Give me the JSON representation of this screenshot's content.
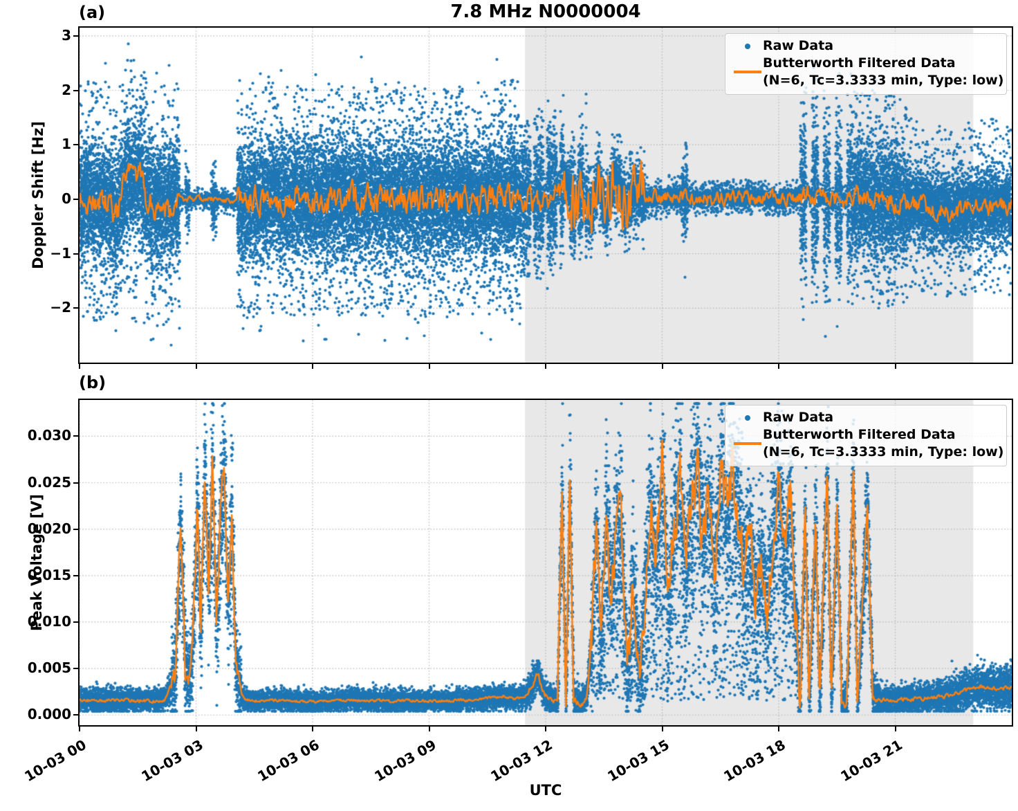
{
  "title": "7.8 MHz N0000004",
  "xlabel": "UTC",
  "panels": {
    "a": {
      "tag": "(a)",
      "ylabel": "Doppler Shift [Hz]"
    },
    "b": {
      "tag": "(b)",
      "ylabel": "Peak Voltage [V]"
    }
  },
  "legend": {
    "raw": "Raw Data",
    "filtered": "Butterworth Filtered Data",
    "filtered_params": "(N=6, Tc=3.3333 min, Type: low)"
  },
  "colors": {
    "raw": "#1f77b4",
    "filtered": "#ff7f0e",
    "shade": "#e8e8e8",
    "grid": "#b3b3b3",
    "spine": "#000000"
  },
  "chart_data": [
    {
      "id": "doppler_shift",
      "type": "scatter",
      "panel": "a",
      "ylabel": "Doppler Shift [Hz]",
      "x_unit": "hours after 10-03 00 UTC",
      "xlim_hours": [
        0,
        24
      ],
      "ylim": [
        -3.0,
        3.15
      ],
      "xticks_hours": [
        0,
        3,
        6,
        9,
        12,
        15,
        18,
        21
      ],
      "xtick_labels": [
        "10-03 00",
        "10-03 03",
        "10-03 06",
        "10-03 09",
        "10-03 12",
        "10-03 15",
        "10-03 18",
        "10-03 21"
      ],
      "yticks": [
        3,
        2,
        1,
        0,
        -1,
        -2
      ],
      "ytick_labels": [
        "3",
        "2",
        "1",
        "0",
        "−1",
        "−2"
      ],
      "grid": true,
      "legend_loc": "upper right",
      "shade_span_hours": [
        11.47,
        23.01
      ],
      "series_names": [
        "Raw Data",
        "Butterworth Filtered Data (N=6, Tc=3.3333 min, Type: low)"
      ],
      "filtered_trend_hz": [
        [
          0,
          0.0
        ],
        [
          0.5,
          -0.05
        ],
        [
          0.8,
          -0.12
        ],
        [
          0.95,
          -0.35
        ],
        [
          1.1,
          0.1
        ],
        [
          1.25,
          0.5
        ],
        [
          1.4,
          0.35
        ],
        [
          1.55,
          0.45
        ],
        [
          1.7,
          0.05
        ],
        [
          1.9,
          -0.15
        ],
        [
          2.2,
          -0.1
        ],
        [
          2.5,
          -0.02
        ],
        [
          3.0,
          0.0
        ],
        [
          3.6,
          0.0
        ],
        [
          4.2,
          -0.08
        ],
        [
          4.8,
          0.0
        ],
        [
          6.0,
          0.0
        ],
        [
          7.5,
          0.02
        ],
        [
          9.0,
          -0.02
        ],
        [
          10.5,
          0.0
        ],
        [
          11.4,
          0.05
        ],
        [
          12.0,
          0.0
        ],
        [
          12.55,
          0.3
        ],
        [
          12.75,
          -0.2
        ],
        [
          12.95,
          0.3
        ],
        [
          13.15,
          -0.35
        ],
        [
          13.35,
          0.4
        ],
        [
          13.55,
          -0.3
        ],
        [
          13.75,
          0.45
        ],
        [
          13.9,
          0.25
        ],
        [
          14.05,
          -0.2
        ],
        [
          14.3,
          0.2
        ],
        [
          14.55,
          0.0
        ],
        [
          15.2,
          0.05
        ],
        [
          16.0,
          0.0
        ],
        [
          17.0,
          0.05
        ],
        [
          18.0,
          0.0
        ],
        [
          18.8,
          0.08
        ],
        [
          19.4,
          -0.05
        ],
        [
          20.0,
          0.05
        ],
        [
          20.6,
          0.0
        ],
        [
          21.2,
          -0.05
        ],
        [
          21.9,
          -0.15
        ],
        [
          22.5,
          -0.25
        ],
        [
          23.0,
          -0.15
        ],
        [
          23.5,
          -0.12
        ],
        [
          24,
          -0.16
        ]
      ],
      "filtered_wiggle_segments": [
        [
          0,
          2.58,
          0.2
        ],
        [
          2.58,
          4.05,
          0.04
        ],
        [
          4.05,
          11.35,
          0.2
        ],
        [
          11.35,
          12.45,
          0.18
        ],
        [
          12.45,
          14.55,
          0.45
        ],
        [
          14.55,
          18.55,
          0.1
        ],
        [
          18.55,
          19.9,
          0.14
        ],
        [
          19.9,
          21.3,
          0.16
        ],
        [
          21.3,
          24,
          0.13
        ]
      ],
      "raw_band_segments": [
        [
          0,
          2.58,
          1.05,
          2.2,
          30
        ],
        [
          2.58,
          2.72,
          0.08,
          0.25,
          12
        ],
        [
          2.72,
          2.82,
          0.55,
          0.8,
          16
        ],
        [
          2.82,
          3.38,
          0.08,
          0.22,
          12
        ],
        [
          3.38,
          3.52,
          0.5,
          0.75,
          16
        ],
        [
          3.52,
          4.05,
          0.1,
          0.28,
          12
        ],
        [
          4.05,
          11.35,
          1.05,
          2.15,
          30
        ],
        [
          12.45,
          12.62,
          0.35,
          0.7,
          16
        ],
        [
          13.05,
          14.55,
          0.45,
          0.95,
          22
        ],
        [
          14.55,
          15.5,
          0.16,
          0.4,
          16
        ],
        [
          15.5,
          15.64,
          0.75,
          1.05,
          18
        ],
        [
          15.64,
          18.55,
          0.14,
          0.32,
          16
        ],
        [
          19.9,
          21.3,
          1.05,
          1.95,
          28
        ],
        [
          21.3,
          24,
          0.62,
          1.6,
          26
        ]
      ],
      "raw_streak_segments": [
        [
          11.35,
          12.45,
          1.15,
          0.3,
          0.34,
          0.72
        ],
        [
          12.62,
          13.05,
          1.0,
          0.35,
          0.2,
          0.65
        ],
        [
          18.55,
          19.9,
          1.5,
          0.16,
          0.3,
          0.52
        ]
      ]
    },
    {
      "id": "peak_voltage",
      "type": "scatter",
      "panel": "b",
      "ylabel": "Peak Voltage [V]",
      "x_unit": "hours after 10-03 00 UTC",
      "xlim_hours": [
        0,
        24
      ],
      "ylim": [
        -0.0011,
        0.0339
      ],
      "xticks_hours": [
        0,
        3,
        6,
        9,
        12,
        15,
        18,
        21
      ],
      "xtick_labels": [
        "10-03 00",
        "10-03 03",
        "10-03 06",
        "10-03 09",
        "10-03 12",
        "10-03 15",
        "10-03 18",
        "10-03 21"
      ],
      "yticks": [
        0.0,
        0.005,
        0.01,
        0.015,
        0.02,
        0.025,
        0.03
      ],
      "ytick_labels": [
        "0.000",
        "0.005",
        "0.010",
        "0.015",
        "0.020",
        "0.025",
        "0.030"
      ],
      "grid": true,
      "legend_loc": "upper right",
      "shade_span_hours": [
        11.47,
        23.01
      ],
      "series_names": [
        "Raw Data",
        "Butterworth Filtered Data (N=6, Tc=3.3333 min, Type: low)"
      ],
      "filtered_trend_v": [
        [
          0,
          0.0016
        ],
        [
          0.6,
          0.0015
        ],
        [
          1.2,
          0.0016
        ],
        [
          1.8,
          0.0015
        ],
        [
          2.2,
          0.0016
        ],
        [
          2.45,
          0.004
        ],
        [
          2.6,
          0.0205
        ],
        [
          2.72,
          0.005
        ],
        [
          2.85,
          0.0035
        ],
        [
          2.95,
          0.012
        ],
        [
          3.03,
          0.0225
        ],
        [
          3.12,
          0.008
        ],
        [
          3.22,
          0.026
        ],
        [
          3.32,
          0.014
        ],
        [
          3.42,
          0.0265
        ],
        [
          3.52,
          0.009
        ],
        [
          3.62,
          0.021
        ],
        [
          3.72,
          0.0265
        ],
        [
          3.82,
          0.011
        ],
        [
          3.92,
          0.0215
        ],
        [
          4.02,
          0.005
        ],
        [
          4.15,
          0.002
        ],
        [
          4.4,
          0.0015
        ],
        [
          5.2,
          0.0016
        ],
        [
          6.0,
          0.0014
        ],
        [
          7.0,
          0.0016
        ],
        [
          8.0,
          0.0015
        ],
        [
          9.0,
          0.0015
        ],
        [
          10.0,
          0.0016
        ],
        [
          10.9,
          0.002
        ],
        [
          11.2,
          0.0017
        ],
        [
          11.5,
          0.002
        ],
        [
          11.8,
          0.0045
        ],
        [
          11.95,
          0.0022
        ],
        [
          12.15,
          0.0017
        ],
        [
          12.3,
          0.0016
        ],
        [
          12.42,
          0.0245
        ],
        [
          12.52,
          0.001
        ],
        [
          12.62,
          0.0255
        ],
        [
          12.72,
          0.001
        ],
        [
          12.9,
          0.0015
        ],
        [
          13.05,
          0.002
        ],
        [
          13.2,
          0.009
        ],
        [
          13.3,
          0.0205
        ],
        [
          13.42,
          0.006
        ],
        [
          13.55,
          0.0225
        ],
        [
          13.68,
          0.012
        ],
        [
          13.8,
          0.0195
        ],
        [
          13.95,
          0.021
        ],
        [
          14.1,
          0.003
        ],
        [
          14.25,
          0.0155
        ],
        [
          14.4,
          0.002
        ],
        [
          14.55,
          0.0135
        ],
        [
          14.7,
          0.0235
        ],
        [
          14.85,
          0.0155
        ],
        [
          15.0,
          0.0255
        ],
        [
          15.15,
          0.0105
        ],
        [
          15.3,
          0.0205
        ],
        [
          15.45,
          0.026
        ],
        [
          15.6,
          0.0155
        ],
        [
          15.75,
          0.0225
        ],
        [
          15.9,
          0.027
        ],
        [
          16.05,
          0.0185
        ],
        [
          16.2,
          0.0245
        ],
        [
          16.35,
          0.015
        ],
        [
          16.5,
          0.027
        ],
        [
          16.65,
          0.0215
        ],
        [
          16.8,
          0.027
        ],
        [
          16.95,
          0.0225
        ],
        [
          17.1,
          0.016
        ],
        [
          17.25,
          0.0195
        ],
        [
          17.4,
          0.0125
        ],
        [
          17.55,
          0.017
        ],
        [
          17.7,
          0.012
        ],
        [
          17.85,
          0.02
        ],
        [
          18.0,
          0.0245
        ],
        [
          18.15,
          0.016
        ],
        [
          18.3,
          0.023
        ],
        [
          18.45,
          0.0095
        ],
        [
          18.55,
          0.0015
        ],
        [
          18.68,
          0.0225
        ],
        [
          18.78,
          0.0012
        ],
        [
          18.95,
          0.0215
        ],
        [
          19.05,
          0.0012
        ],
        [
          19.25,
          0.027
        ],
        [
          19.35,
          0.0012
        ],
        [
          19.5,
          0.0225
        ],
        [
          19.62,
          0.0012
        ],
        [
          19.75,
          0.0012
        ],
        [
          19.92,
          0.026
        ],
        [
          20.02,
          0.0012
        ],
        [
          20.28,
          0.0225
        ],
        [
          20.42,
          0.0015
        ],
        [
          20.7,
          0.0016
        ],
        [
          21.2,
          0.0017
        ],
        [
          21.8,
          0.0018
        ],
        [
          22.3,
          0.002
        ],
        [
          22.8,
          0.0026
        ],
        [
          23.2,
          0.003
        ],
        [
          23.6,
          0.0028
        ],
        [
          24,
          0.0029
        ]
      ],
      "filtered_wiggle_segments": [
        [
          0,
          2.35,
          0.00015
        ],
        [
          2.35,
          4.15,
          0.0012
        ],
        [
          4.15,
          11.5,
          0.00012
        ],
        [
          11.5,
          12.3,
          0.0003
        ],
        [
          12.3,
          13.15,
          0.0004
        ],
        [
          13.15,
          18.55,
          0.0026
        ],
        [
          18.55,
          20.5,
          0.0004
        ],
        [
          20.5,
          24,
          0.00018
        ]
      ],
      "raw_sigma_segments": [
        [
          0,
          2.35,
          0.00045
        ],
        [
          2.35,
          4.15,
          0.002
        ],
        [
          4.15,
          11.5,
          0.0004
        ],
        [
          11.5,
          12.3,
          0.0005
        ],
        [
          12.3,
          12.85,
          0.0011
        ],
        [
          12.85,
          13.15,
          0.0005
        ],
        [
          13.15,
          18.55,
          0.0026
        ],
        [
          18.55,
          20.55,
          0.0011
        ],
        [
          20.55,
          22.3,
          0.00055
        ],
        [
          22.3,
          24,
          0.0008
        ]
      ],
      "raw_sigma_relative": 0.1,
      "raw_uniform_streaks": [
        13.15,
        18.55,
        0.3
      ],
      "raw_pts_per_col": 16
    }
  ]
}
